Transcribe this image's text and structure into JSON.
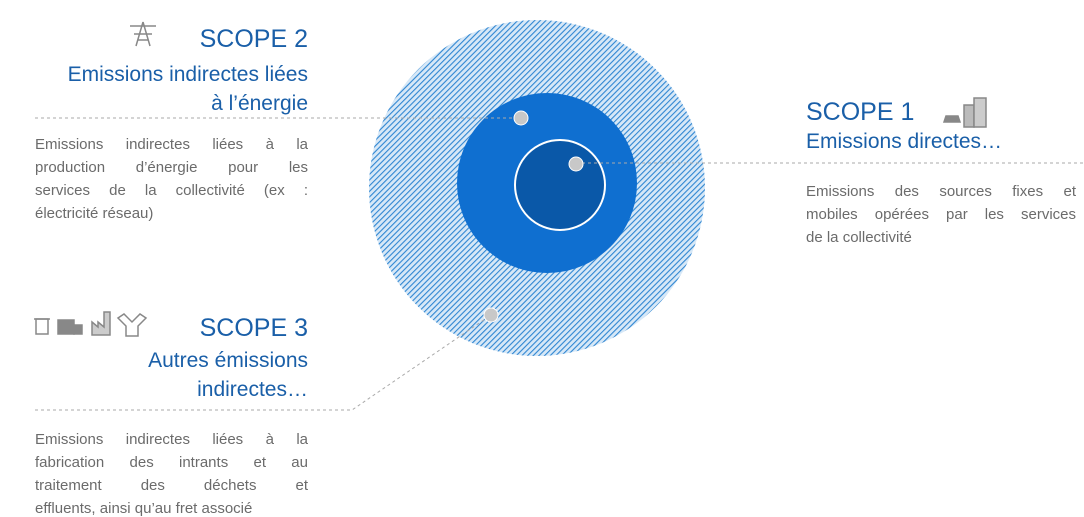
{
  "scopes": [
    {
      "title": "SCOPE 2",
      "subtitle": [
        "Emissions indirectes liées",
        "à l’énergie"
      ],
      "description": [
        "Emissions indirectes liées à la",
        "production d’énergie pour les",
        "services de la collectivité (ex :",
        "électricité réseau)"
      ]
    },
    {
      "title": "SCOPE 1",
      "subtitle": [
        "Emissions directes…"
      ],
      "description": [
        "Emissions des sources fixes et",
        "mobiles opérées par les services",
        "de la collectivité"
      ]
    },
    {
      "title": "SCOPE 3",
      "subtitle": [
        "Autres émissions",
        "indirectes…"
      ],
      "description": [
        "Emissions indirectes liées à la",
        "fabrication des intrants et au",
        "traitement des déchets et",
        "effluents, ainsi qu’au fret associé"
      ]
    }
  ]
}
